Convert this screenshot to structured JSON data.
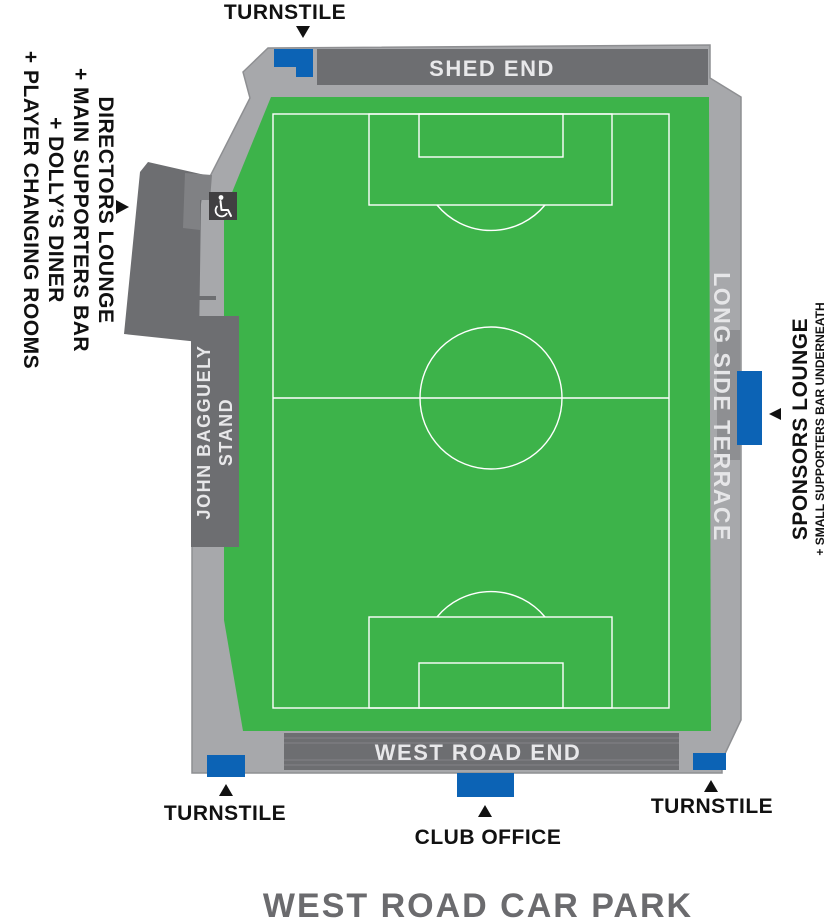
{
  "stands": {
    "north": "SHED END",
    "south": "WEST ROAD END",
    "west_line1": "JOHN BAGGUELY",
    "west_line2": "STAND",
    "east": "LONG SIDE TERRACE"
  },
  "facilities": {
    "turnstile_north": "TURNSTILE",
    "turnstile_southwest": "TURNSTILE",
    "turnstile_southeast": "TURNSTILE",
    "club_office": "CLUB OFFICE",
    "directors_lines": [
      "DIRECTORS LOUNGE",
      "+ MAIN SUPPORTERS BAR",
      "+ DOLLY’S DINER",
      "+ PLAYER CHANGING ROOMS"
    ],
    "sponsors_lounge": "SPONSORS LOUNGE",
    "sponsors_sub": "+ SMALL SUPPORTERS BAR UNDERNEATH"
  },
  "car_park": "WEST ROAD CAR PARK",
  "icons": {
    "accessible": "wheelchair-icon",
    "marker": "triangle-marker-icon"
  },
  "colors": {
    "pitch": "#3db34a",
    "terrace_outer": "#a7a8ab",
    "stand_dark": "#6d6e71",
    "facility_blue": "#0c63b5",
    "line": "#ffffff",
    "text": "#111111",
    "car_park_text": "#6b6b6e"
  }
}
